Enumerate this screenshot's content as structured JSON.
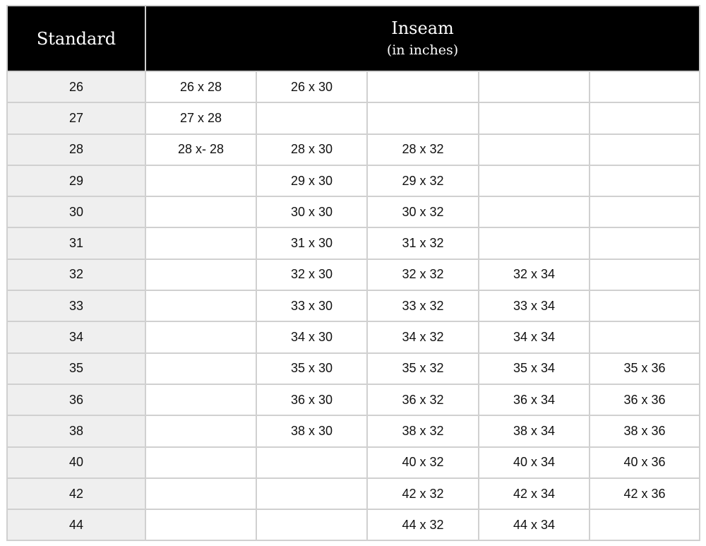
{
  "header": {
    "standard": "Standard",
    "inseam": "Inseam",
    "inseam_sub": "(in inches)"
  },
  "rows": [
    {
      "standard": "26",
      "cells": [
        "26 x 28",
        "26 x 30",
        "",
        "",
        ""
      ]
    },
    {
      "standard": "27",
      "cells": [
        "27 x 28",
        "",
        "",
        "",
        ""
      ]
    },
    {
      "standard": "28",
      "cells": [
        "28 x- 28",
        "28 x 30",
        "28 x 32",
        "",
        ""
      ]
    },
    {
      "standard": "29",
      "cells": [
        "",
        "29 x 30",
        "29 x 32",
        "",
        ""
      ]
    },
    {
      "standard": "30",
      "cells": [
        "",
        "30 x 30",
        "30 x 32",
        "",
        ""
      ]
    },
    {
      "standard": "31",
      "cells": [
        "",
        "31 x 30",
        "31 x 32",
        "",
        ""
      ]
    },
    {
      "standard": "32",
      "cells": [
        "",
        "32 x 30",
        "32 x 32",
        "32 x 34",
        ""
      ]
    },
    {
      "standard": "33",
      "cells": [
        "",
        "33 x 30",
        "33 x 32",
        "33 x 34",
        ""
      ]
    },
    {
      "standard": "34",
      "cells": [
        "",
        "34 x 30",
        "34 x 32",
        "34 x 34",
        ""
      ]
    },
    {
      "standard": "35",
      "cells": [
        "",
        "35 x 30",
        "35 x 32",
        "35 x 34",
        "35 x 36"
      ]
    },
    {
      "standard": "36",
      "cells": [
        "",
        "36 x 30",
        "36 x 32",
        "36 x 34",
        "36 x 36"
      ]
    },
    {
      "standard": "38",
      "cells": [
        "",
        "38 x 30",
        "38 x 32",
        "38 x 34",
        "38 x 36"
      ]
    },
    {
      "standard": "40",
      "cells": [
        "",
        "",
        "40 x 32",
        "40 x 34",
        "40 x 36"
      ]
    },
    {
      "standard": "42",
      "cells": [
        "",
        "",
        "42 x 32",
        "42 x 34",
        "42 x 36"
      ]
    },
    {
      "standard": "44",
      "cells": [
        "",
        "",
        "44 x 32",
        "44 x 34",
        ""
      ]
    }
  ]
}
